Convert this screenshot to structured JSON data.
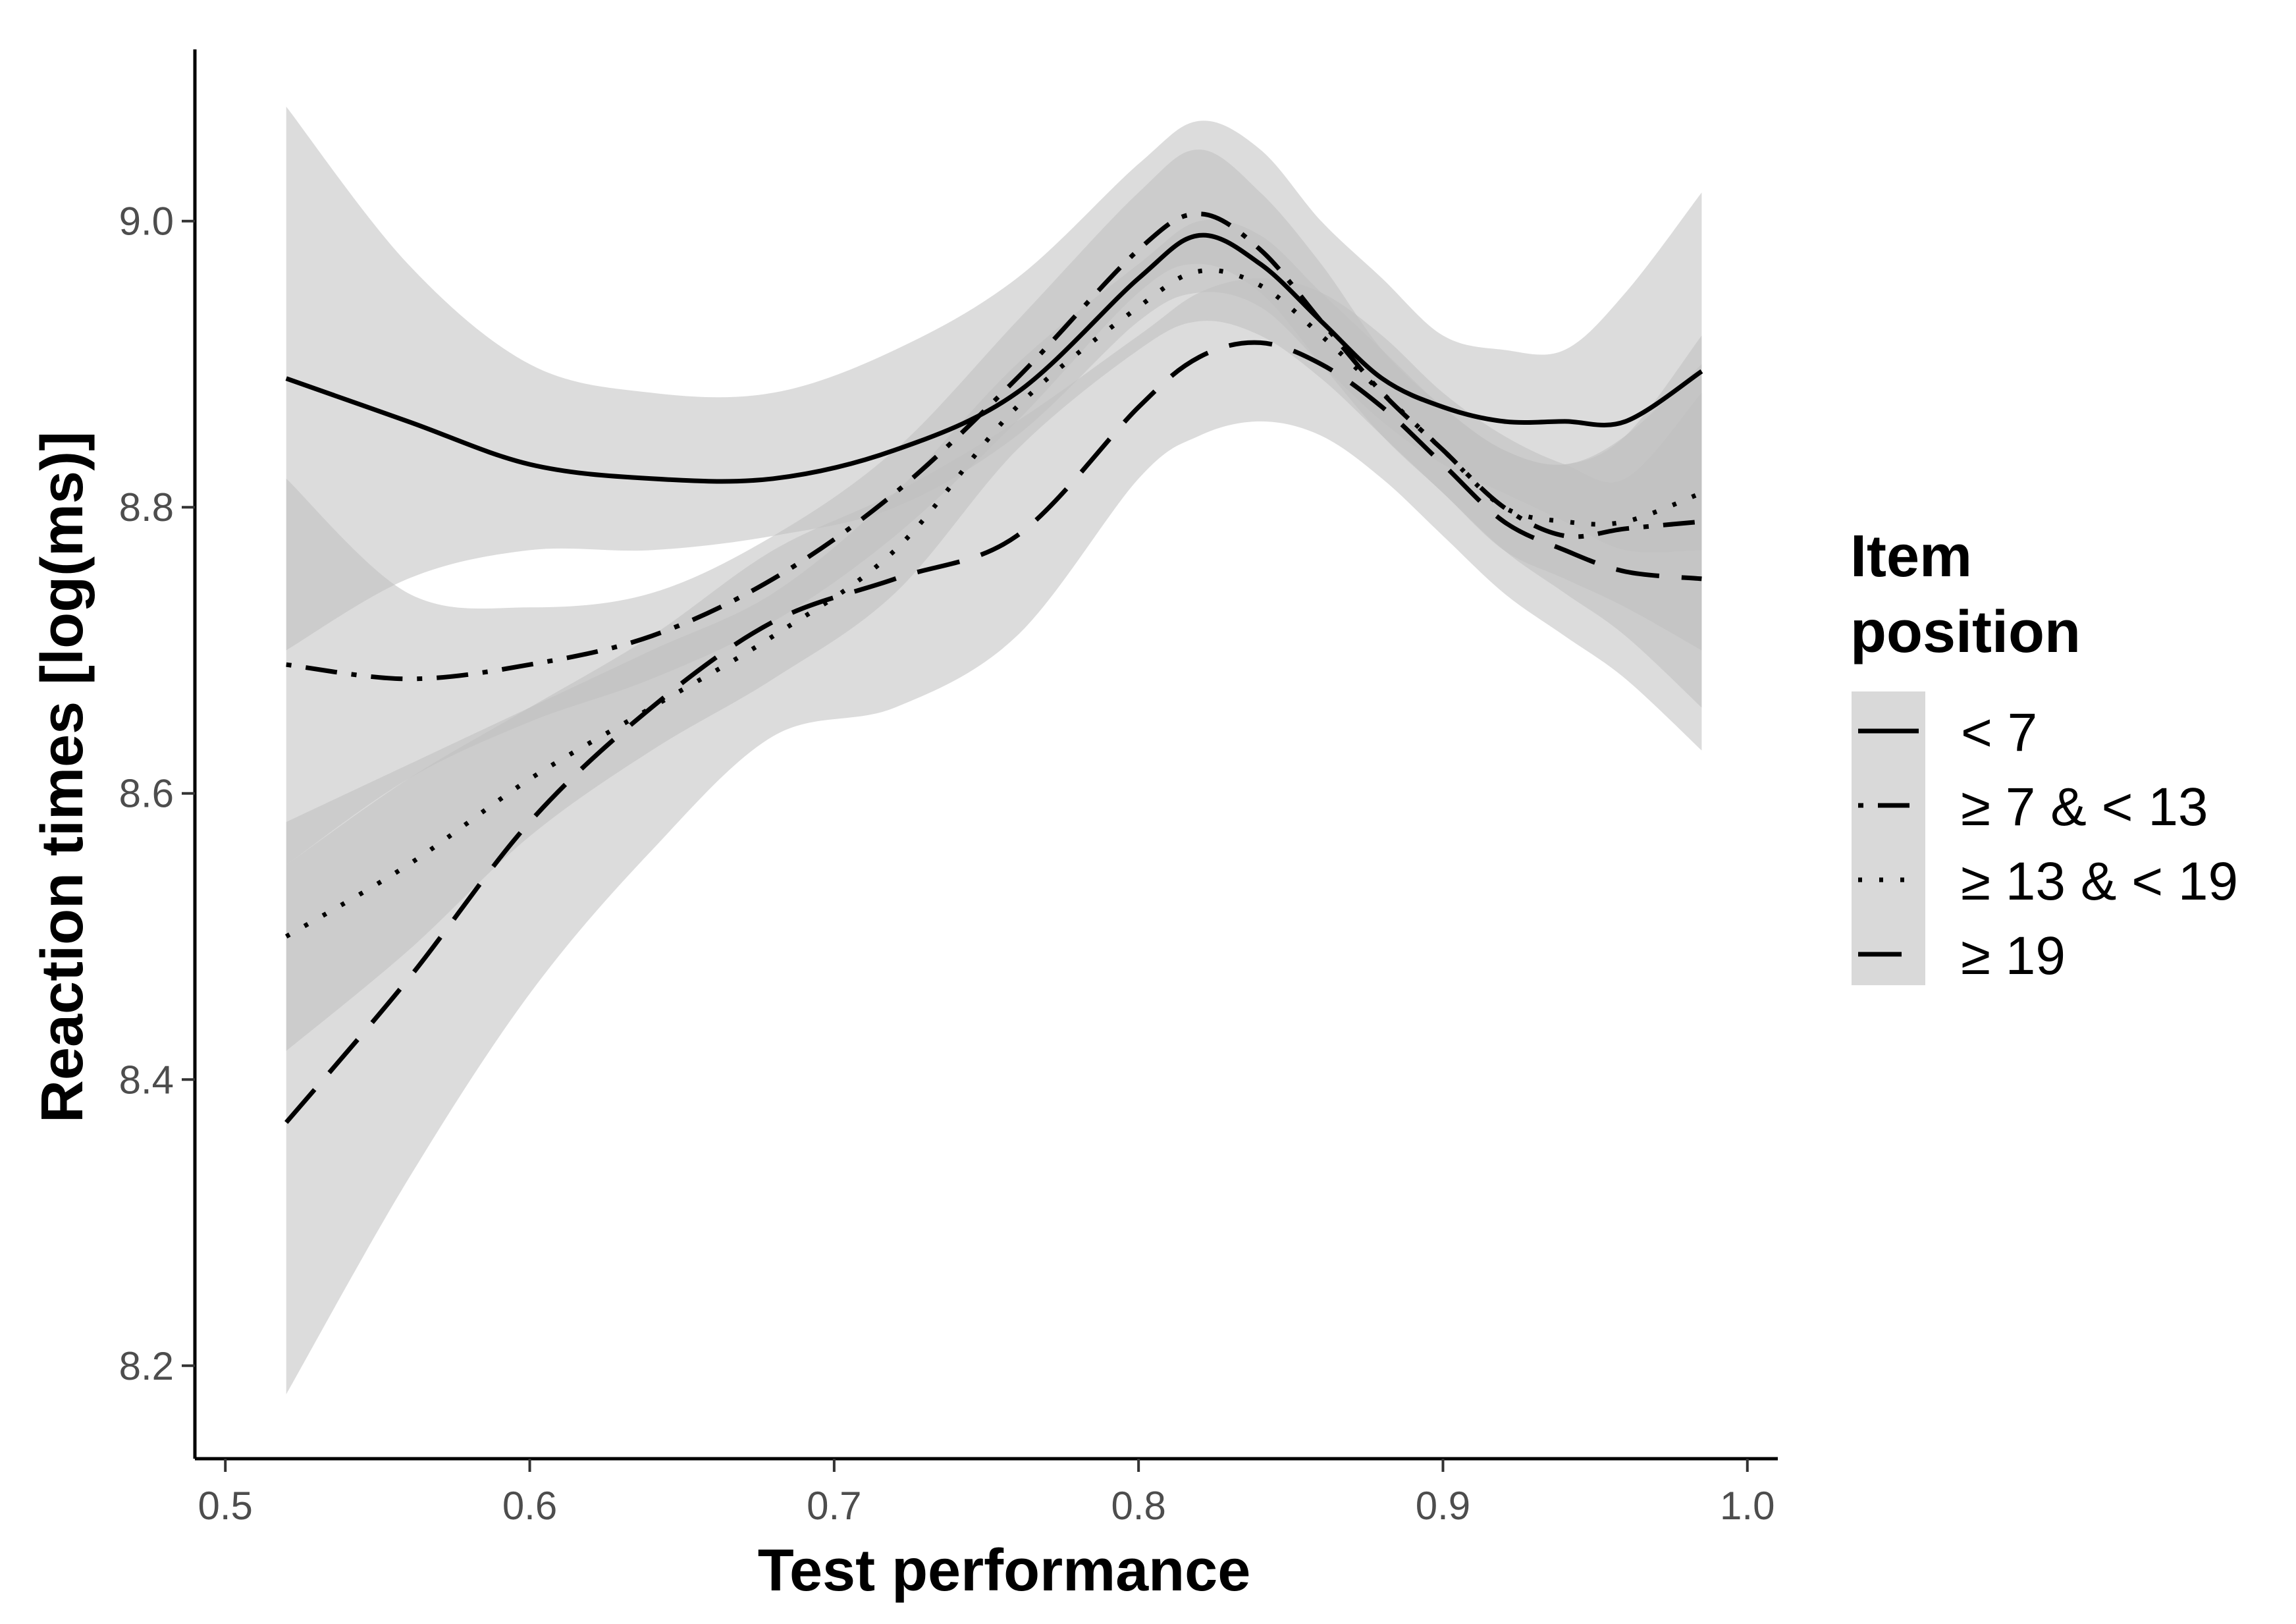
{
  "chart_data": {
    "type": "line",
    "xlabel": "Test performance",
    "ylabel": "Reaction times [log(ms)]",
    "xlim": [
      0.49,
      1.01
    ],
    "ylim": [
      8.135,
      9.12
    ],
    "x_ticks": [
      0.5,
      0.6,
      0.7,
      0.8,
      0.9,
      1.0
    ],
    "x_tick_labels": [
      "0.5",
      "0.6",
      "0.7",
      "0.8",
      "0.9",
      "1.0"
    ],
    "y_ticks": [
      8.2,
      8.4,
      8.6,
      8.8,
      9.0
    ],
    "y_tick_labels": [
      "8.2",
      "8.4",
      "8.6",
      "8.8",
      "9.0"
    ],
    "grid": false,
    "legend": {
      "title_lines": [
        "Item",
        "position"
      ],
      "placement": "right",
      "entries": [
        "< 7",
        "≥ 7 & < 13",
        "≥ 13 & < 19",
        "≥ 19"
      ]
    },
    "colors": {
      "band": "#bfbfbf",
      "legend_key_bg": "#d9d9d9",
      "axis": "#000000"
    },
    "x": [
      0.52,
      0.56,
      0.6,
      0.64,
      0.68,
      0.72,
      0.76,
      0.8,
      0.82,
      0.84,
      0.86,
      0.88,
      0.9,
      0.92,
      0.94,
      0.96,
      0.985
    ],
    "series": [
      {
        "name": "< 7",
        "dash": "solid",
        "values": [
          8.89,
          8.86,
          8.83,
          8.82,
          8.82,
          8.84,
          8.88,
          8.96,
          8.99,
          8.97,
          8.93,
          8.89,
          8.87,
          8.86,
          8.86,
          8.86,
          8.895
        ],
        "lower": [
          8.7,
          8.75,
          8.77,
          8.77,
          8.78,
          8.8,
          8.85,
          8.93,
          8.95,
          8.94,
          8.9,
          8.86,
          8.83,
          8.81,
          8.79,
          8.77,
          8.77
        ],
        "upper": [
          9.08,
          8.97,
          8.9,
          8.88,
          8.88,
          8.91,
          8.96,
          9.04,
          9.07,
          9.05,
          9.0,
          8.96,
          8.92,
          8.91,
          8.91,
          8.95,
          9.02
        ]
      },
      {
        "name": "≥ 7 & < 13",
        "dash": "dotdash",
        "values": [
          8.69,
          8.68,
          8.69,
          8.71,
          8.75,
          8.81,
          8.89,
          8.98,
          9.005,
          8.98,
          8.93,
          8.88,
          8.84,
          8.8,
          8.78,
          8.785,
          8.79
        ],
        "lower": [
          8.55,
          8.61,
          8.65,
          8.68,
          8.72,
          8.78,
          8.86,
          8.95,
          8.97,
          8.95,
          8.9,
          8.85,
          8.81,
          8.77,
          8.74,
          8.71,
          8.66
        ],
        "upper": [
          8.82,
          8.74,
          8.73,
          8.74,
          8.78,
          8.84,
          8.93,
          9.02,
          9.05,
          9.02,
          8.97,
          8.91,
          8.87,
          8.84,
          8.83,
          8.85,
          8.9
        ]
      },
      {
        "name": "≥ 13 & < 19",
        "dash": "dotted",
        "values": [
          8.5,
          8.55,
          8.61,
          8.66,
          8.71,
          8.77,
          8.87,
          8.94,
          8.965,
          8.955,
          8.92,
          8.88,
          8.84,
          8.8,
          8.79,
          8.79,
          8.81
        ],
        "lower": [
          8.42,
          8.49,
          8.57,
          8.63,
          8.68,
          8.74,
          8.84,
          8.91,
          8.93,
          8.92,
          8.89,
          8.85,
          8.81,
          8.77,
          8.75,
          8.73,
          8.7
        ],
        "upper": [
          8.58,
          8.62,
          8.66,
          8.7,
          8.74,
          8.81,
          8.9,
          8.97,
          9.0,
          8.99,
          8.95,
          8.91,
          8.87,
          8.84,
          8.83,
          8.85,
          8.92
        ]
      },
      {
        "name": "≥ 19",
        "dash": "longdash",
        "values": [
          8.37,
          8.47,
          8.58,
          8.66,
          8.72,
          8.75,
          8.78,
          8.87,
          8.905,
          8.915,
          8.9,
          8.87,
          8.83,
          8.79,
          8.77,
          8.755,
          8.75
        ],
        "lower": [
          8.18,
          8.33,
          8.46,
          8.56,
          8.64,
          8.66,
          8.71,
          8.82,
          8.85,
          8.86,
          8.85,
          8.82,
          8.78,
          8.74,
          8.71,
          8.68,
          8.63
        ],
        "upper": [
          8.55,
          8.61,
          8.66,
          8.71,
          8.77,
          8.81,
          8.86,
          8.92,
          8.95,
          8.96,
          8.95,
          8.92,
          8.88,
          8.85,
          8.83,
          8.82,
          8.88
        ]
      }
    ]
  }
}
